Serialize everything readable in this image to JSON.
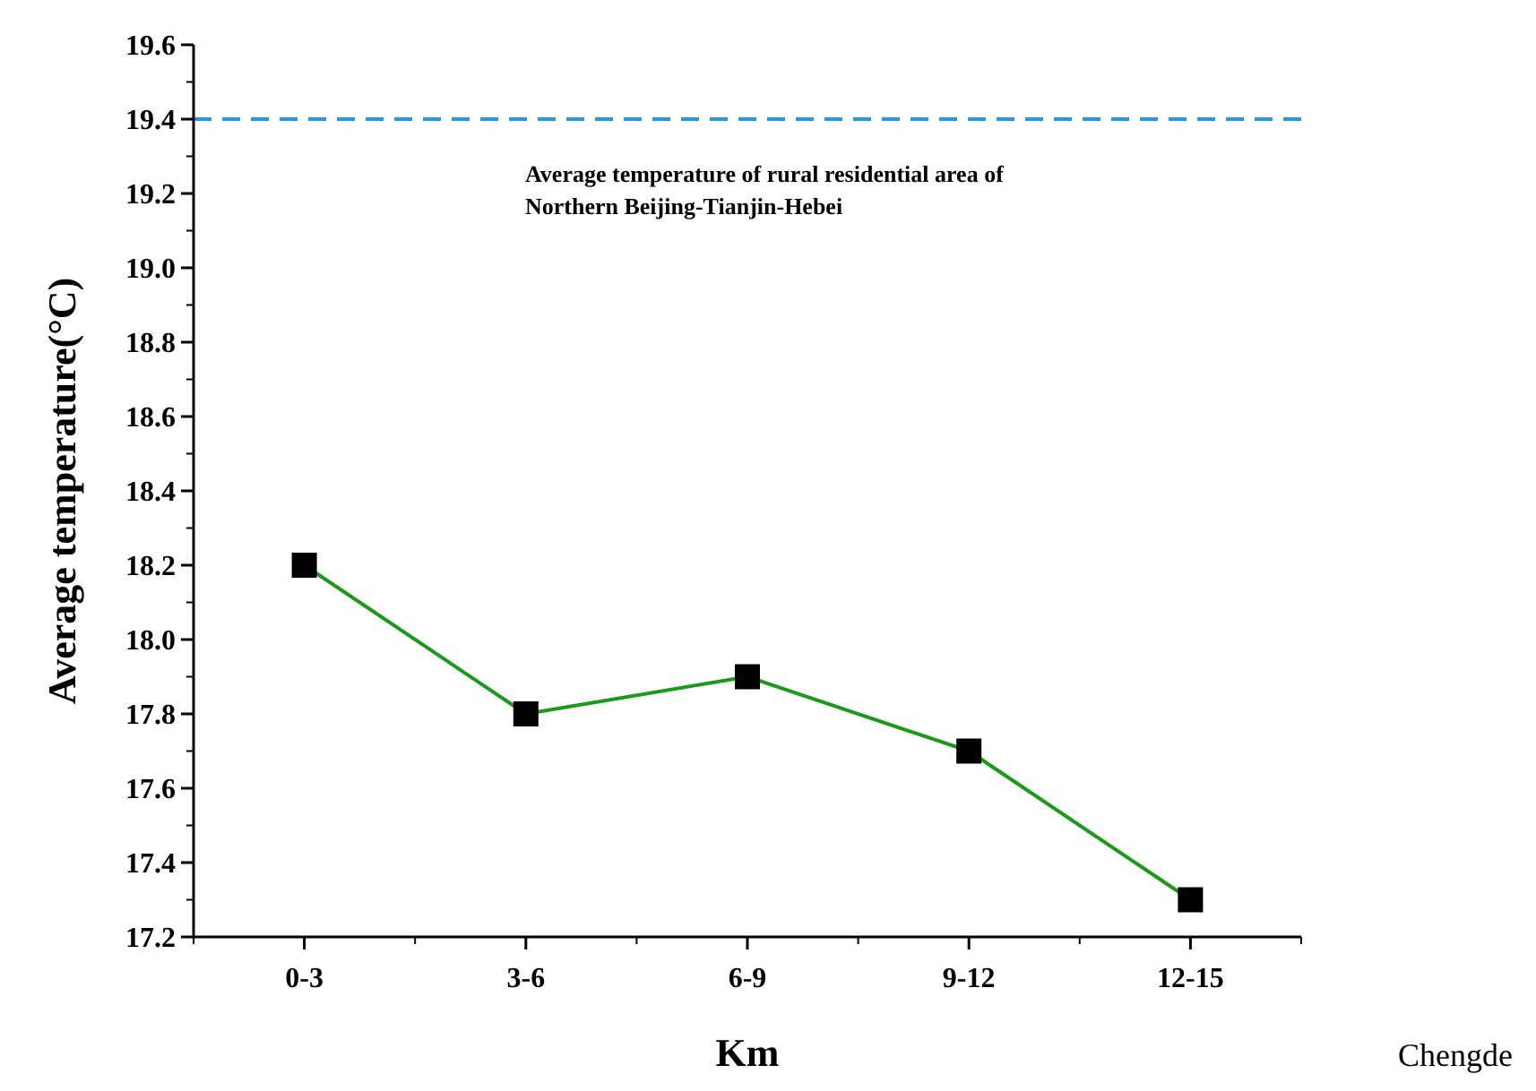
{
  "chart_data": {
    "type": "line",
    "xlabel": "Km",
    "ylabel": "Average temperature(°C)",
    "categories": [
      "0-3",
      "3-6",
      "6-9",
      "9-12",
      "12-15"
    ],
    "series": [
      {
        "color": "#1a9a1a",
        "values": [
          18.2,
          17.8,
          17.9,
          17.7,
          17.3
        ]
      }
    ],
    "ylim": [
      17.2,
      19.6
    ],
    "yticks": [
      17.2,
      17.4,
      17.6,
      17.8,
      {
        "value": 18,
        "label": "18.0"
      },
      18.2,
      18.4,
      18.6,
      18.8,
      {
        "value": 19,
        "label": "19.0"
      },
      19.2,
      19.4,
      19.6
    ],
    "ref_lines": [
      {
        "axis": "y",
        "value": 19.4,
        "label": "Average temperature of rural residential area of\nNorthern Beijing-Tianjin-Hebei",
        "color": "#1e9be8",
        "line_style": "dashed"
      }
    ],
    "annotations": [
      "Chengde"
    ],
    "marker": "square",
    "line_style": "solid",
    "grid": false
  }
}
